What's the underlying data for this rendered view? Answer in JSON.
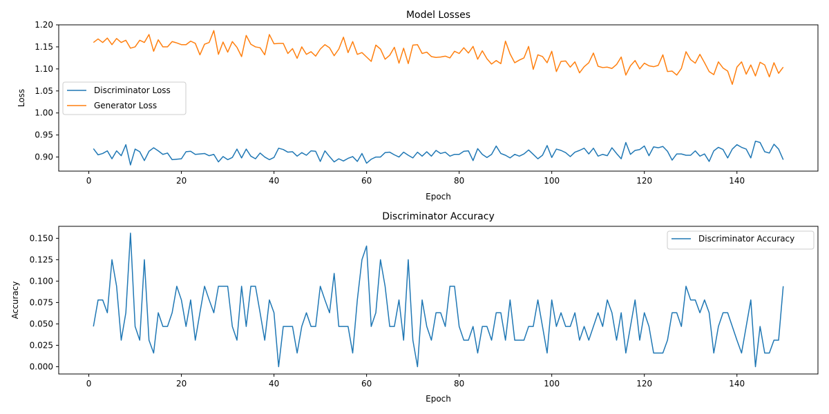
{
  "chart_data": [
    {
      "type": "line",
      "title": "Model Losses",
      "xlabel": "Epoch",
      "ylabel": "Loss",
      "xlim": [
        -6.5,
        157.5
      ],
      "ylim": [
        0.868,
        1.2
      ],
      "xticks": [
        0,
        20,
        40,
        60,
        80,
        100,
        120,
        140
      ],
      "yticks": [
        0.9,
        0.95,
        1.0,
        1.05,
        1.1,
        1.15,
        1.2
      ],
      "ytick_decimals": 2,
      "legend": "center-left",
      "x_start": 1,
      "series": [
        {
          "name": "Discriminator Loss",
          "color": "#1f77b4",
          "values": [
            0.919,
            0.905,
            0.908,
            0.914,
            0.896,
            0.914,
            0.903,
            0.928,
            0.882,
            0.918,
            0.912,
            0.892,
            0.913,
            0.921,
            0.914,
            0.906,
            0.909,
            0.894,
            0.895,
            0.896,
            0.912,
            0.913,
            0.906,
            0.907,
            0.908,
            0.903,
            0.906,
            0.889,
            0.901,
            0.894,
            0.899,
            0.918,
            0.898,
            0.918,
            0.902,
            0.896,
            0.909,
            0.9,
            0.894,
            0.899,
            0.92,
            0.917,
            0.911,
            0.912,
            0.902,
            0.91,
            0.904,
            0.914,
            0.913,
            0.89,
            0.914,
            0.901,
            0.889,
            0.896,
            0.891,
            0.897,
            0.901,
            0.89,
            0.908,
            0.886,
            0.895,
            0.9,
            0.9,
            0.91,
            0.911,
            0.905,
            0.9,
            0.911,
            0.904,
            0.898,
            0.911,
            0.902,
            0.912,
            0.902,
            0.915,
            0.908,
            0.911,
            0.902,
            0.906,
            0.906,
            0.913,
            0.914,
            0.892,
            0.919,
            0.906,
            0.899,
            0.906,
            0.925,
            0.908,
            0.904,
            0.898,
            0.906,
            0.902,
            0.907,
            0.916,
            0.906,
            0.896,
            0.904,
            0.926,
            0.899,
            0.918,
            0.915,
            0.91,
            0.901,
            0.911,
            0.915,
            0.92,
            0.907,
            0.92,
            0.902,
            0.906,
            0.903,
            0.921,
            0.908,
            0.896,
            0.933,
            0.906,
            0.915,
            0.917,
            0.925,
            0.903,
            0.923,
            0.921,
            0.924,
            0.913,
            0.893,
            0.907,
            0.907,
            0.904,
            0.904,
            0.914,
            0.902,
            0.907,
            0.89,
            0.914,
            0.922,
            0.917,
            0.898,
            0.918,
            0.928,
            0.922,
            0.918,
            0.898,
            0.936,
            0.933,
            0.912,
            0.909,
            0.929,
            0.918,
            0.894
          ]
        },
        {
          "name": "Generator Loss",
          "color": "#ff7f0e",
          "values": [
            1.16,
            1.168,
            1.16,
            1.17,
            1.155,
            1.169,
            1.16,
            1.165,
            1.147,
            1.15,
            1.165,
            1.16,
            1.178,
            1.14,
            1.166,
            1.15,
            1.15,
            1.162,
            1.159,
            1.155,
            1.155,
            1.163,
            1.158,
            1.132,
            1.156,
            1.16,
            1.187,
            1.133,
            1.161,
            1.138,
            1.162,
            1.149,
            1.128,
            1.176,
            1.156,
            1.15,
            1.148,
            1.132,
            1.178,
            1.157,
            1.158,
            1.158,
            1.135,
            1.146,
            1.124,
            1.15,
            1.133,
            1.139,
            1.129,
            1.145,
            1.155,
            1.148,
            1.13,
            1.145,
            1.172,
            1.137,
            1.162,
            1.133,
            1.137,
            1.127,
            1.117,
            1.154,
            1.145,
            1.122,
            1.131,
            1.149,
            1.113,
            1.147,
            1.112,
            1.154,
            1.155,
            1.135,
            1.138,
            1.128,
            1.126,
            1.127,
            1.129,
            1.125,
            1.14,
            1.135,
            1.148,
            1.136,
            1.151,
            1.122,
            1.141,
            1.123,
            1.111,
            1.119,
            1.112,
            1.163,
            1.134,
            1.114,
            1.12,
            1.125,
            1.151,
            1.099,
            1.132,
            1.128,
            1.114,
            1.14,
            1.094,
            1.117,
            1.118,
            1.104,
            1.116,
            1.091,
            1.105,
            1.114,
            1.136,
            1.106,
            1.103,
            1.104,
            1.101,
            1.11,
            1.127,
            1.086,
            1.107,
            1.119,
            1.1,
            1.113,
            1.107,
            1.105,
            1.108,
            1.132,
            1.094,
            1.095,
            1.086,
            1.101,
            1.139,
            1.121,
            1.113,
            1.133,
            1.114,
            1.094,
            1.087,
            1.116,
            1.102,
            1.095,
            1.065,
            1.104,
            1.116,
            1.088,
            1.109,
            1.084,
            1.115,
            1.109,
            1.082,
            1.114,
            1.09,
            1.104
          ]
        }
      ]
    },
    {
      "type": "line",
      "title": "Discriminator Accuracy",
      "xlabel": "Epoch",
      "ylabel": "Accuracy",
      "xlim": [
        -6.5,
        157.5
      ],
      "ylim": [
        -0.0085,
        0.164
      ],
      "xticks": [
        0,
        20,
        40,
        60,
        80,
        100,
        120,
        140
      ],
      "yticks": [
        0.0,
        0.025,
        0.05,
        0.075,
        0.1,
        0.125,
        0.15
      ],
      "ytick_decimals": 3,
      "legend": "top-right",
      "x_start": 1,
      "series": [
        {
          "name": "Discriminator Accuracy",
          "color": "#1f77b4",
          "values": [
            0.047,
            0.078,
            0.078,
            0.063,
            0.125,
            0.094,
            0.031,
            0.063,
            0.156,
            0.047,
            0.031,
            0.125,
            0.031,
            0.016,
            0.063,
            0.047,
            0.047,
            0.063,
            0.094,
            0.078,
            0.047,
            0.078,
            0.031,
            0.063,
            0.094,
            0.078,
            0.063,
            0.094,
            0.094,
            0.094,
            0.047,
            0.031,
            0.094,
            0.047,
            0.094,
            0.094,
            0.063,
            0.031,
            0.078,
            0.063,
            0.0,
            0.047,
            0.047,
            0.047,
            0.016,
            0.047,
            0.063,
            0.047,
            0.047,
            0.094,
            0.078,
            0.063,
            0.109,
            0.047,
            0.047,
            0.047,
            0.016,
            0.078,
            0.125,
            0.141,
            0.047,
            0.063,
            0.125,
            0.094,
            0.047,
            0.047,
            0.078,
            0.031,
            0.125,
            0.031,
            0.0,
            0.078,
            0.047,
            0.031,
            0.063,
            0.063,
            0.047,
            0.094,
            0.094,
            0.047,
            0.031,
            0.031,
            0.047,
            0.016,
            0.047,
            0.047,
            0.031,
            0.063,
            0.063,
            0.031,
            0.078,
            0.031,
            0.031,
            0.031,
            0.047,
            0.047,
            0.078,
            0.047,
            0.016,
            0.078,
            0.047,
            0.063,
            0.047,
            0.047,
            0.063,
            0.031,
            0.047,
            0.031,
            0.047,
            0.063,
            0.047,
            0.078,
            0.063,
            0.031,
            0.063,
            0.016,
            0.047,
            0.078,
            0.031,
            0.063,
            0.047,
            0.016,
            0.016,
            0.016,
            0.031,
            0.063,
            0.063,
            0.047,
            0.094,
            0.078,
            0.078,
            0.063,
            0.078,
            0.063,
            0.016,
            0.047,
            0.063,
            0.063,
            0.047,
            0.031,
            0.016,
            0.047,
            0.078,
            0.0,
            0.047,
            0.016,
            0.016,
            0.031,
            0.031,
            0.094
          ]
        }
      ]
    }
  ]
}
